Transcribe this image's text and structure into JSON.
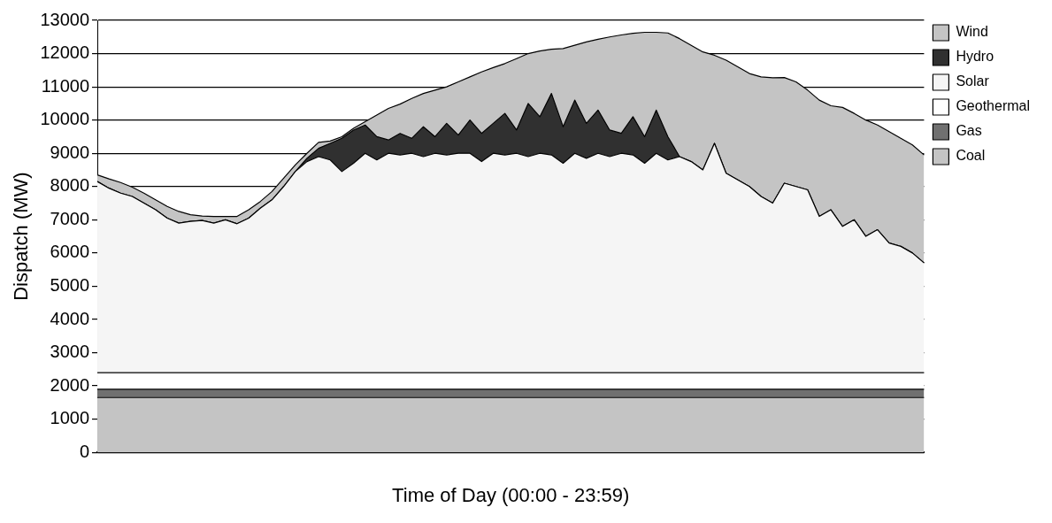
{
  "chart_data": {
    "type": "area",
    "stacked": true,
    "xlabel": "Time of Day (00:00 - 23:59)",
    "ylabel": "Dispatch (MW)",
    "categories": [
      null,
      null,
      null,
      null,
      null,
      null,
      null,
      null,
      null,
      null,
      null,
      null,
      null,
      null,
      null,
      null,
      null,
      null,
      null,
      null,
      null,
      null,
      null,
      null,
      null,
      null,
      null,
      null,
      null,
      null,
      null,
      null,
      null,
      null,
      null,
      null,
      null,
      null,
      null,
      null,
      null,
      null,
      null,
      null,
      null,
      null,
      null,
      null,
      null,
      null,
      null,
      null,
      null,
      null,
      null,
      null,
      null,
      null,
      null,
      null,
      null,
      null,
      null,
      null,
      null,
      null,
      null,
      null,
      null,
      null,
      null,
      null
    ],
    "ylim": [
      0,
      13000
    ],
    "yticks": [
      0,
      1000,
      2000,
      3000,
      4000,
      5000,
      6000,
      7000,
      8000,
      9000,
      10000,
      11000,
      12000,
      13000
    ],
    "grid": "y",
    "legend": "top right",
    "series": [
      {
        "name": "Coal",
        "color": "#c4c4c4",
        "values": [
          1650,
          1650,
          1650,
          1650,
          1650,
          1650,
          1650,
          1650,
          1650,
          1650,
          1650,
          1650,
          1650,
          1650,
          1650,
          1650,
          1650,
          1650,
          1650,
          1650,
          1650,
          1650,
          1650,
          1650,
          1650,
          1650,
          1650,
          1650,
          1650,
          1650,
          1650,
          1650,
          1650,
          1650,
          1650,
          1650,
          1650,
          1650,
          1650,
          1650,
          1650,
          1650,
          1650,
          1650,
          1650,
          1650,
          1650,
          1650,
          1650,
          1650,
          1650,
          1650,
          1650,
          1650,
          1650,
          1650,
          1650,
          1650,
          1650,
          1650,
          1650,
          1650,
          1650,
          1650,
          1650,
          1650,
          1650,
          1650,
          1650,
          1650,
          1650,
          1650
        ]
      },
      {
        "name": "Gas",
        "color": "#707070",
        "values": [
          250,
          250,
          250,
          250,
          250,
          250,
          250,
          250,
          250,
          250,
          250,
          250,
          250,
          250,
          250,
          250,
          250,
          250,
          250,
          250,
          250,
          250,
          250,
          250,
          250,
          250,
          250,
          250,
          250,
          250,
          250,
          250,
          250,
          250,
          250,
          250,
          250,
          250,
          250,
          250,
          250,
          250,
          250,
          250,
          250,
          250,
          250,
          250,
          250,
          250,
          250,
          250,
          250,
          250,
          250,
          250,
          250,
          250,
          250,
          250,
          250,
          250,
          250,
          250,
          250,
          250,
          250,
          250,
          250,
          250,
          250,
          250
        ]
      },
      {
        "name": "Geothermal",
        "color": "#ffffff",
        "values": [
          500,
          500,
          500,
          500,
          500,
          500,
          500,
          500,
          500,
          500,
          500,
          500,
          500,
          500,
          500,
          500,
          500,
          500,
          500,
          500,
          500,
          500,
          500,
          500,
          500,
          500,
          500,
          500,
          500,
          500,
          500,
          500,
          500,
          500,
          500,
          500,
          500,
          500,
          500,
          500,
          500,
          500,
          500,
          500,
          500,
          500,
          500,
          500,
          500,
          500,
          500,
          500,
          500,
          500,
          500,
          500,
          500,
          500,
          500,
          500,
          500,
          500,
          500,
          500,
          500,
          500,
          500,
          500,
          500,
          500,
          500,
          500
        ]
      },
      {
        "name": "Solar",
        "color": "#f5f5f5",
        "values": [
          5750,
          5550,
          5400,
          5300,
          5100,
          4900,
          4650,
          4500,
          4550,
          4580,
          4500,
          4600,
          4480,
          4650,
          4950,
          5200,
          5600,
          6050,
          6350,
          6500,
          6400,
          6050,
          6300,
          6600,
          6400,
          6600,
          6550,
          6600,
          6500,
          6600,
          6550,
          6600,
          6600,
          6350,
          6600,
          6550,
          6600,
          6500,
          6600,
          6550,
          6300,
          6600,
          6450,
          6600,
          6500,
          6600,
          6550,
          6300,
          6600,
          6400,
          6500,
          6350,
          6100,
          6900,
          6000,
          5800,
          5600,
          5300,
          5100,
          5700,
          5600,
          5500,
          4700,
          4900,
          4400,
          4600,
          4100,
          4300,
          3900,
          3800,
          3600,
          3300
        ]
      },
      {
        "name": "Hydro",
        "color": "#303030",
        "values": [
          0,
          0,
          0,
          0,
          0,
          0,
          0,
          0,
          0,
          0,
          0,
          0,
          0,
          0,
          0,
          0,
          0,
          0,
          100,
          250,
          500,
          1000,
          1000,
          850,
          700,
          400,
          650,
          450,
          900,
          500,
          950,
          550,
          1000,
          850,
          900,
          1250,
          700,
          1600,
          1100,
          1850,
          1100,
          1600,
          1050,
          1300,
          800,
          600,
          1150,
          800,
          1300,
          700,
          0,
          0,
          0,
          0,
          0,
          0,
          0,
          0,
          0,
          0,
          0,
          0,
          0,
          0,
          0,
          0,
          0,
          0,
          0,
          0,
          0,
          0
        ]
      },
      {
        "name": "Wind",
        "color": "#c4c4c4",
        "values": [
          200,
          280,
          320,
          280,
          300,
          300,
          350,
          350,
          200,
          130,
          200,
          100,
          220,
          250,
          200,
          250,
          250,
          200,
          150,
          180,
          70,
          50,
          50,
          100,
          650,
          950,
          880,
          1200,
          1000,
          1400,
          1100,
          1600,
          1300,
          1850,
          1680,
          1500,
          2150,
          1500,
          1980,
          1330,
          2350,
          1650,
          2450,
          2130,
          2800,
          2960,
          2510,
          3140,
          2340,
          3120,
          3550,
          3500,
          3550,
          2650,
          3400,
          3400,
          3400,
          3600,
          3770,
          3180,
          3150,
          3000,
          3500,
          3130,
          3580,
          3200,
          3500,
          3150,
          3350,
          3250,
          3250,
          3250
        ]
      }
    ]
  }
}
